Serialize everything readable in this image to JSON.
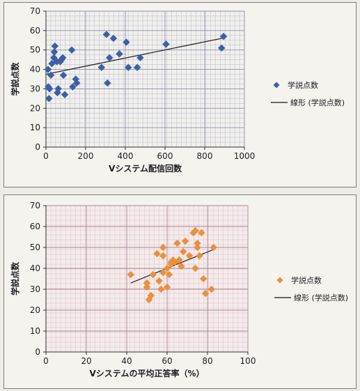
{
  "chart_data": [
    {
      "type": "scatter",
      "xlabel": "Vシステム配信回数",
      "ylabel": "学説点数",
      "xlim": [
        0,
        1000
      ],
      "ylim": [
        0,
        70
      ],
      "xticks": [
        0,
        200,
        400,
        600,
        800,
        1000
      ],
      "yticks": [
        0,
        10,
        20,
        30,
        40,
        50,
        60,
        70
      ],
      "grid": true,
      "legend_position": "right",
      "marker_color": "#3e5fa6",
      "series": [
        {
          "name": "学説点数",
          "points": [
            [
              10,
              40
            ],
            [
              12,
              31
            ],
            [
              18,
              30
            ],
            [
              25,
              37
            ],
            [
              15,
              25
            ],
            [
              30,
              43
            ],
            [
              40,
              46
            ],
            [
              42,
              49
            ],
            [
              45,
              52
            ],
            [
              55,
              44
            ],
            [
              58,
              28
            ],
            [
              62,
              30
            ],
            [
              72,
              44
            ],
            [
              78,
              45
            ],
            [
              85,
              46
            ],
            [
              88,
              37
            ],
            [
              95,
              27
            ],
            [
              130,
              50
            ],
            [
              135,
              31
            ],
            [
              150,
              35
            ],
            [
              155,
              33
            ],
            [
              280,
              41
            ],
            [
              305,
              58
            ],
            [
              310,
              33
            ],
            [
              320,
              46
            ],
            [
              340,
              56
            ],
            [
              370,
              48
            ],
            [
              405,
              54
            ],
            [
              415,
              41
            ],
            [
              460,
              41
            ],
            [
              475,
              46
            ],
            [
              605,
              53
            ],
            [
              885,
              51
            ],
            [
              895,
              57
            ]
          ]
        }
      ],
      "trendline": {
        "name": "線形 (学説点数)",
        "x": [
          0,
          900
        ],
        "y": [
          37.5,
          56.3
        ]
      }
    },
    {
      "type": "scatter",
      "xlabel": "Vシステムの平均正答率（%）",
      "ylabel": "学説点数",
      "xlim": [
        0,
        100
      ],
      "ylim": [
        0,
        70
      ],
      "xticks": [
        0,
        20,
        40,
        60,
        80,
        100
      ],
      "yticks": [
        0,
        10,
        20,
        30,
        40,
        50,
        60,
        70
      ],
      "grid": true,
      "legend_position": "right",
      "marker_color": "#ec8f3c",
      "series": [
        {
          "name": "学説点数",
          "points": [
            [
              42,
              37
            ],
            [
              50,
              33
            ],
            [
              50,
              31
            ],
            [
              51,
              25
            ],
            [
              52,
              27
            ],
            [
              53,
              37
            ],
            [
              55,
              47
            ],
            [
              56,
              34
            ],
            [
              57,
              30
            ],
            [
              58,
              50
            ],
            [
              58,
              46
            ],
            [
              58,
              38
            ],
            [
              60,
              31
            ],
            [
              60,
              40
            ],
            [
              61,
              37
            ],
            [
              62,
              42
            ],
            [
              62,
              43
            ],
            [
              63,
              44
            ],
            [
              64,
              43
            ],
            [
              65,
              52
            ],
            [
              66,
              44
            ],
            [
              67,
              41
            ],
            [
              68,
              48
            ],
            [
              69,
              53
            ],
            [
              71,
              46
            ],
            [
              73,
              57
            ],
            [
              74,
              40
            ],
            [
              74,
              58
            ],
            [
              75,
              52
            ],
            [
              75,
              50
            ],
            [
              76,
              46
            ],
            [
              77,
              57
            ],
            [
              78,
              35
            ],
            [
              79,
              28
            ],
            [
              82,
              30
            ],
            [
              83,
              50
            ]
          ]
        }
      ],
      "trendline": {
        "name": "線形 (学説点数)",
        "x": [
          42,
          83
        ],
        "y": [
          33,
          49
        ]
      }
    }
  ]
}
